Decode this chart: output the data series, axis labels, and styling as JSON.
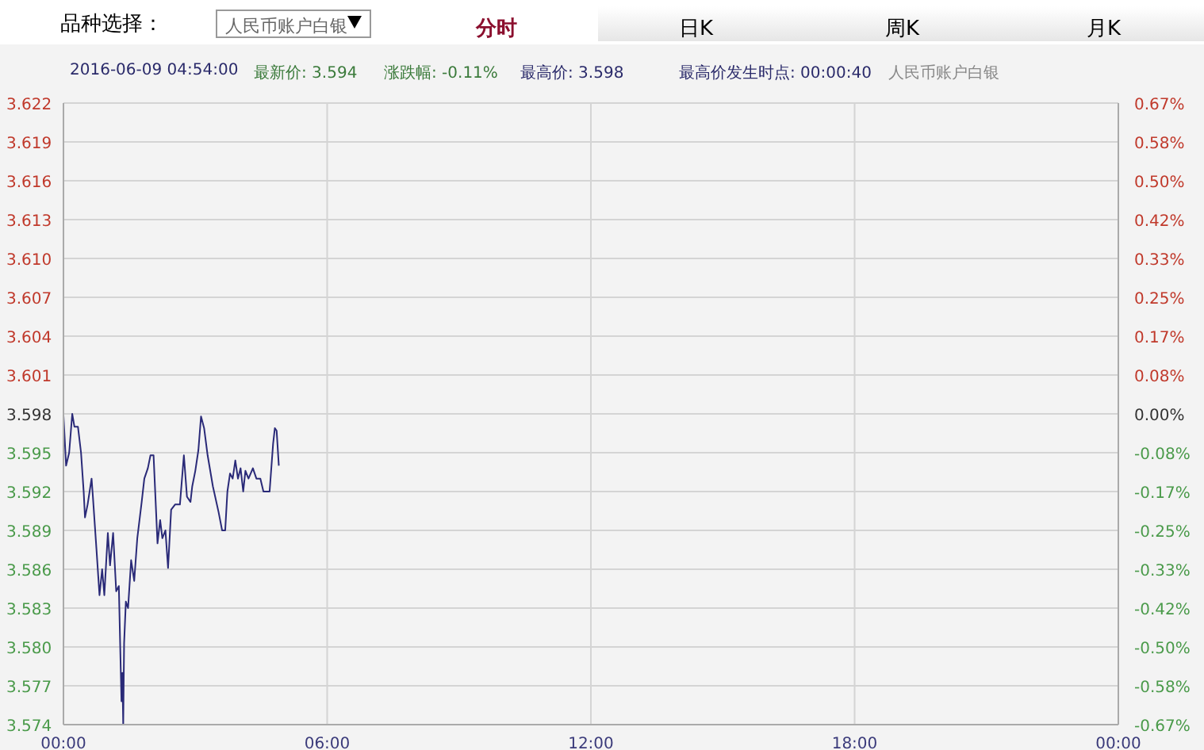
{
  "chart_data": {
    "type": "line",
    "annotations": [
      "品种选择：",
      "人民币账户白银",
      "分时",
      "日K",
      "周K",
      "月K",
      "2016-06-09 04:54:00",
      "最新价: 3.594",
      "涨跌幅: -0.11%",
      "最高价: 3.598",
      "最高价发生时点: 00:00:40",
      "人民币账户白银"
    ],
    "x": [
      0,
      0.06,
      0.13,
      0.2,
      0.25,
      0.33,
      0.4,
      0.46,
      0.49,
      0.55,
      0.64,
      0.67,
      0.75,
      0.82,
      0.88,
      0.93,
      1.01,
      1.06,
      1.13,
      1.2,
      1.26,
      1.32,
      1.34,
      1.36,
      1.38,
      1.42,
      1.47,
      1.54,
      1.61,
      1.68,
      1.78,
      1.84,
      1.92,
      1.98,
      2.05,
      2.14,
      2.2,
      2.25,
      2.32,
      2.38,
      2.45,
      2.54,
      2.65,
      2.74,
      2.81,
      2.89,
      2.93,
      3.0,
      3.07,
      3.13,
      3.2,
      3.28,
      3.4,
      3.53,
      3.61,
      3.68,
      3.73,
      3.79,
      3.85,
      3.91,
      3.97,
      4.03,
      4.09,
      4.14,
      4.21,
      4.31,
      4.39,
      4.48,
      4.55,
      4.69,
      4.77,
      4.81,
      4.85,
      4.9
    ],
    "series": [
      {
        "color": "#2a2a78",
        "values": [
          3.5979,
          3.594,
          3.595,
          3.598,
          3.597,
          3.597,
          3.595,
          3.592,
          3.59,
          3.591,
          3.593,
          3.5916,
          3.5876,
          3.584,
          3.586,
          3.584,
          3.5888,
          3.5863,
          3.5888,
          3.5843,
          3.5847,
          3.5758,
          3.578,
          3.574,
          3.5803,
          3.5835,
          3.583,
          3.5867,
          3.5851,
          3.5884,
          3.5912,
          3.593,
          3.5938,
          3.5948,
          3.5948,
          3.588,
          3.5898,
          3.5884,
          3.589,
          3.5861,
          3.5906,
          3.591,
          3.591,
          3.5948,
          3.5916,
          3.5912,
          3.5924,
          3.5936,
          3.5952,
          3.5978,
          3.5969,
          3.5948,
          3.5924,
          3.5904,
          3.589,
          3.589,
          3.592,
          3.5934,
          3.593,
          3.5944,
          3.593,
          3.5938,
          3.592,
          3.5936,
          3.593,
          3.5938,
          3.593,
          3.593,
          3.592,
          3.592,
          3.5957,
          3.5969,
          3.5967,
          3.594
        ]
      }
    ],
    "xlim": [
      0,
      24
    ],
    "xticks": [
      {
        "value": 0,
        "label": "00:00"
      },
      {
        "value": 6,
        "label": "06:00"
      },
      {
        "value": 12,
        "label": "12:00"
      },
      {
        "value": 18,
        "label": "18:00"
      },
      {
        "value": 24,
        "label": "00:00"
      }
    ],
    "ylim": [
      3.574,
      3.622
    ],
    "yticks": [
      3.574,
      3.577,
      {
        "value": 3.58,
        "label": "3.580"
      },
      3.583,
      3.586,
      3.589,
      3.592,
      3.595,
      3.598,
      3.601,
      3.604,
      3.607,
      {
        "value": 3.61,
        "label": "3.610"
      },
      3.613,
      3.616,
      3.619,
      3.622
    ],
    "y2lim": [
      -0.6671,
      0.6671
    ],
    "y2ticks": [
      {
        "value": -0.6671,
        "label": "-0.67%"
      },
      {
        "value": -0.5837,
        "label": "-0.58%"
      },
      {
        "value": -0.5003,
        "label": "-0.50%"
      },
      {
        "value": -0.4169,
        "label": "-0.42%"
      },
      {
        "value": -0.3336,
        "label": "-0.33%"
      },
      {
        "value": -0.2502,
        "label": "-0.25%"
      },
      {
        "value": -0.1668,
        "label": "-0.17%"
      },
      {
        "value": -0.0834,
        "label": "-0.08%"
      },
      {
        "value": 0,
        "label": "0.00%"
      },
      {
        "value": 0.0834,
        "label": "0.08%"
      },
      {
        "value": 0.1668,
        "label": "0.17%"
      },
      {
        "value": 0.2502,
        "label": "0.25%"
      },
      {
        "value": 0.3336,
        "label": "0.33%"
      },
      {
        "value": 0.4169,
        "label": "0.42%"
      },
      {
        "value": 0.5003,
        "label": "0.50%"
      },
      {
        "value": 0.5837,
        "label": "0.58%"
      },
      {
        "value": 0.6671,
        "label": "0.67%"
      }
    ],
    "grid": true,
    "marker": "none",
    "line_style": "solid"
  }
}
